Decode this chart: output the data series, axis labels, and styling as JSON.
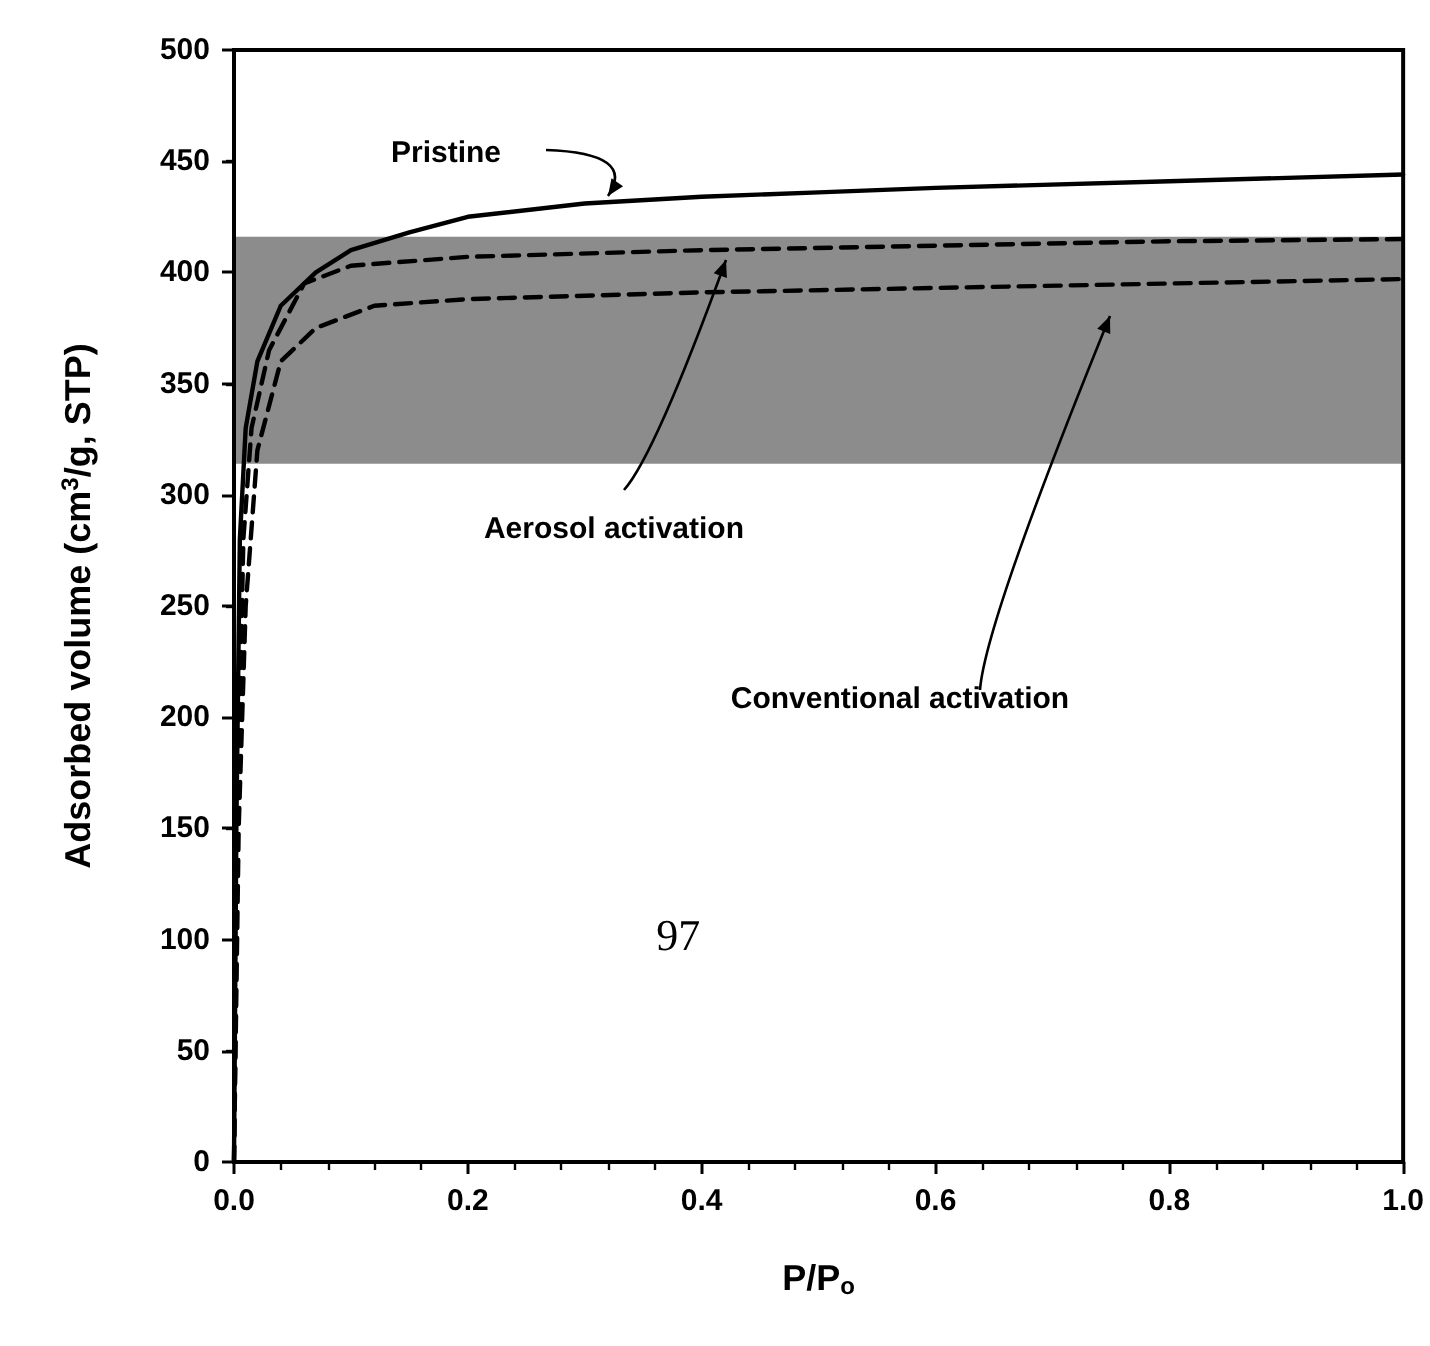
{
  "chart_data": {
    "type": "line",
    "xlabel": "P/P$_{o}$",
    "ylabel": "Adsorbed volume (cm$^{3}$/g, STP)",
    "xlim": [
      0,
      1
    ],
    "xticks": [
      {
        "value": 0,
        "label": "0.0"
      },
      {
        "value": 0.2,
        "label": "0.2"
      },
      {
        "value": 0.4,
        "label": "0.4"
      },
      {
        "value": 0.6,
        "label": "0.6"
      },
      {
        "value": 0.8,
        "label": "0.8"
      },
      {
        "value": 1,
        "label": "1.0"
      }
    ],
    "ylim": [
      0,
      500
    ],
    "yticks": [
      0,
      50,
      100,
      150,
      200,
      250,
      300,
      350,
      400,
      450,
      500
    ],
    "grid": false,
    "marker": "none",
    "series": [
      {
        "color": "#000000",
        "line_style": "solid",
        "x": [
          0,
          0.002,
          0.005,
          0.01,
          0.02,
          0.04,
          0.07,
          0.1,
          0.15,
          0.2,
          0.3,
          0.4,
          0.5,
          0.6,
          0.8,
          1.0
        ],
        "values": [
          0,
          150,
          280,
          330,
          360,
          385,
          400,
          410,
          418,
          425,
          431,
          434,
          436,
          438,
          441,
          444
        ]
      },
      {
        "color": "#000000",
        "line_style": "dashed",
        "x": [
          0,
          0.003,
          0.008,
          0.015,
          0.03,
          0.06,
          0.1,
          0.2,
          0.4,
          0.6,
          0.8,
          1.0
        ],
        "values": [
          0,
          150,
          280,
          330,
          365,
          395,
          403,
          407,
          410,
          412,
          414,
          415
        ]
      },
      {
        "color": "#000000",
        "line_style": "dashed",
        "x": [
          0,
          0.004,
          0.01,
          0.02,
          0.04,
          0.07,
          0.12,
          0.2,
          0.4,
          0.6,
          0.8,
          1.0
        ],
        "values": [
          0,
          150,
          250,
          320,
          360,
          375,
          385,
          388,
          391,
          393,
          395,
          397
        ]
      }
    ],
    "bands": [
      {
        "axis": "y",
        "from": 314,
        "to": 416,
        "color": "#000000"
      }
    ],
    "annotations": [
      "Pristine",
      "Aerosol activation",
      "Conventional activation",
      "97"
    ]
  }
}
